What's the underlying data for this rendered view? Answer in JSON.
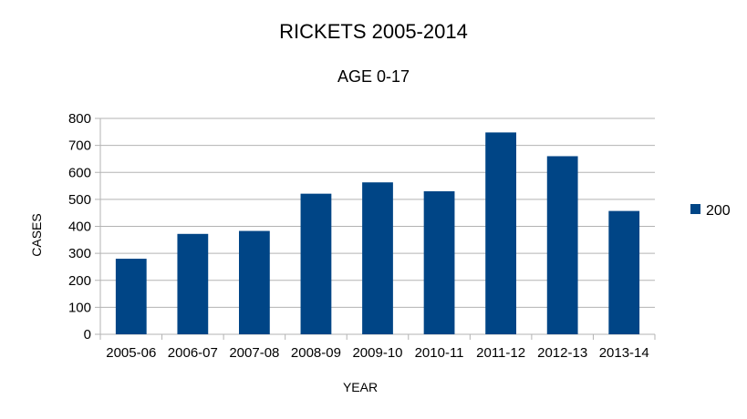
{
  "chart_data": {
    "type": "bar",
    "title": "RICKETS 2005-2014",
    "subtitle": "AGE 0-17",
    "xlabel": "YEAR",
    "ylabel": "CASES",
    "categories": [
      "2005-06",
      "2006-07",
      "2007-08",
      "2008-09",
      "2009-10",
      "2010-11",
      "2011-12",
      "2012-13",
      "2013-14"
    ],
    "series": [
      {
        "name": "200",
        "values": [
          280,
          372,
          383,
          521,
          563,
          530,
          748,
          660,
          457
        ]
      }
    ],
    "ylim": [
      0,
      800
    ],
    "yticks": [
      0,
      100,
      200,
      300,
      400,
      500,
      600,
      700,
      800
    ],
    "grid": true,
    "legend": "right",
    "colors": {
      "bar": "#004586",
      "grid": "#b3b3b3",
      "axis": "#b3b3b3"
    }
  }
}
